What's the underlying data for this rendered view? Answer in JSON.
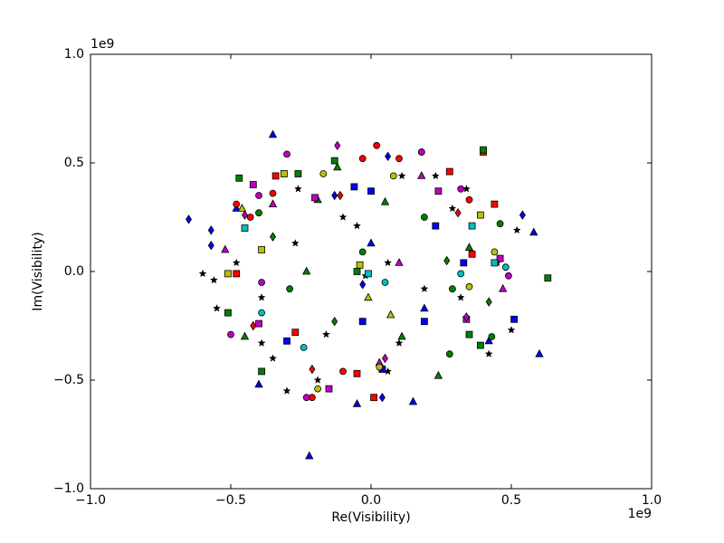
{
  "chart_data": {
    "type": "scatter",
    "xlabel": "Re(Visibility)",
    "ylabel": "Im(Visibility)",
    "x_offset_label": "1e9",
    "y_offset_label": "1e9",
    "xlim": [
      -1,
      1
    ],
    "ylim": [
      -1,
      1
    ],
    "xticks": [
      {
        "value": -1,
        "label": "−1.0"
      },
      {
        "value": -0.5,
        "label": "−0.5"
      },
      {
        "value": 0,
        "label": "0.0"
      },
      {
        "value": 0.5,
        "label": "0.5"
      },
      {
        "value": 1,
        "label": "1.0"
      }
    ],
    "yticks": [
      {
        "value": -1,
        "label": "−1.0"
      },
      {
        "value": -0.5,
        "label": "−0.5"
      },
      {
        "value": 0,
        "label": "0.0"
      },
      {
        "value": 0.5,
        "label": "0.5"
      },
      {
        "value": 1,
        "label": "1.0"
      }
    ],
    "series": [
      {
        "color": "#000000",
        "marker": "star",
        "x": [
          -0.6,
          -0.56,
          -0.55,
          -0.48,
          -0.39,
          -0.3,
          -0.27,
          -0.35,
          -0.19,
          -0.05,
          -0.02,
          0.06,
          0.1,
          0.19,
          0.23,
          0.29,
          0.42,
          0.5,
          0.52,
          0.45,
          -0.1,
          0.11,
          -0.26,
          0.06,
          -0.39,
          -0.16,
          0.32,
          0.34
        ],
        "y": [
          -0.01,
          -0.04,
          -0.17,
          0.04,
          -0.12,
          -0.55,
          0.13,
          -0.4,
          -0.5,
          0.21,
          -0.02,
          0.04,
          -0.33,
          -0.08,
          0.44,
          0.29,
          -0.38,
          -0.27,
          0.19,
          0.04,
          0.25,
          0.44,
          0.38,
          -0.46,
          -0.33,
          -0.29,
          -0.12,
          0.38
        ]
      },
      {
        "color": "#0000ff",
        "marker": "triangle",
        "x": [
          -0.22,
          -0.35,
          0.6,
          0.58,
          -0.4,
          -0.05,
          0.15,
          0.0,
          0.19,
          0.42,
          -0.48
        ],
        "y": [
          -0.85,
          0.63,
          -0.38,
          0.18,
          -0.52,
          -0.61,
          -0.6,
          0.13,
          -0.17,
          -0.32,
          0.29
        ]
      },
      {
        "color": "#0000ff",
        "marker": "diamond",
        "x": [
          -0.65,
          -0.57,
          -0.57,
          0.54,
          -0.13,
          0.04,
          -0.03,
          0.06
        ],
        "y": [
          0.24,
          0.19,
          0.12,
          0.26,
          0.35,
          -0.58,
          -0.06,
          0.53
        ]
      },
      {
        "color": "#0000ff",
        "marker": "square",
        "x": [
          0.51,
          0.19,
          0.0,
          -0.03,
          -0.3,
          0.23,
          0.33,
          0.04,
          -0.06
        ],
        "y": [
          -0.22,
          -0.23,
          0.37,
          -0.23,
          -0.32,
          0.21,
          0.04,
          -0.45,
          0.39
        ]
      },
      {
        "color": "#ff0000",
        "marker": "circle",
        "x": [
          0.02,
          0.1,
          0.18,
          -0.21,
          -0.1,
          -0.48,
          -0.35,
          -0.03,
          0.35,
          -0.43
        ],
        "y": [
          0.58,
          0.52,
          0.55,
          -0.58,
          -0.46,
          0.31,
          0.36,
          0.52,
          0.33,
          0.25
        ]
      },
      {
        "color": "#ff0000",
        "marker": "square",
        "x": [
          0.01,
          0.4,
          -0.34,
          -0.48,
          0.28,
          -0.27,
          -0.05,
          0.44,
          0.36
        ],
        "y": [
          -0.58,
          0.55,
          0.44,
          -0.01,
          0.46,
          -0.28,
          -0.47,
          0.31,
          0.08
        ]
      },
      {
        "color": "#ff0000",
        "marker": "diamond",
        "x": [
          -0.21,
          -0.11,
          -0.42,
          0.31
        ],
        "y": [
          -0.45,
          0.35,
          -0.25,
          0.27
        ]
      },
      {
        "color": "#008000",
        "marker": "square",
        "x": [
          0.4,
          0.63,
          -0.39,
          -0.47,
          -0.26,
          -0.13,
          0.39,
          -0.05,
          0.35,
          -0.51
        ],
        "y": [
          0.56,
          -0.03,
          -0.46,
          0.43,
          0.45,
          0.51,
          -0.34,
          0.0,
          -0.29,
          -0.19
        ]
      },
      {
        "color": "#008000",
        "marker": "circle",
        "x": [
          0.46,
          0.43,
          0.28,
          -0.4,
          -0.03,
          0.19,
          -0.29,
          0.29
        ],
        "y": [
          0.22,
          -0.3,
          -0.38,
          0.27,
          0.09,
          0.25,
          -0.08,
          -0.08
        ]
      },
      {
        "color": "#008000",
        "marker": "triangle",
        "x": [
          -0.12,
          0.24,
          -0.45,
          -0.23,
          0.11,
          0.05,
          -0.19,
          0.35
        ],
        "y": [
          0.48,
          -0.48,
          -0.3,
          0.0,
          -0.3,
          0.32,
          0.33,
          0.11
        ]
      },
      {
        "color": "#008000",
        "marker": "diamond",
        "x": [
          -0.13,
          0.27,
          -0.35,
          0.42
        ],
        "y": [
          -0.23,
          0.05,
          0.16,
          -0.14
        ]
      },
      {
        "color": "#bf00bf",
        "marker": "circle",
        "x": [
          -0.23,
          0.18,
          -0.5,
          -0.4,
          -0.3,
          0.49,
          0.32,
          -0.39
        ],
        "y": [
          -0.58,
          0.55,
          -0.29,
          0.35,
          0.54,
          -0.02,
          0.38,
          -0.05
        ]
      },
      {
        "color": "#bf00bf",
        "marker": "square",
        "x": [
          -0.42,
          0.24,
          -0.2,
          -0.4,
          0.34,
          -0.15,
          0.46
        ],
        "y": [
          0.4,
          0.37,
          0.34,
          -0.24,
          -0.22,
          -0.54,
          0.06
        ]
      },
      {
        "color": "#bf00bf",
        "marker": "triangle",
        "x": [
          -0.52,
          0.18,
          -0.35,
          0.1,
          0.03,
          0.47
        ],
        "y": [
          0.1,
          0.44,
          0.31,
          0.04,
          -0.42,
          -0.08
        ]
      },
      {
        "color": "#bf00bf",
        "marker": "diamond",
        "x": [
          -0.12,
          -0.45,
          0.34,
          0.05
        ],
        "y": [
          0.58,
          0.26,
          -0.21,
          -0.4
        ]
      },
      {
        "color": "#00bfbf",
        "marker": "circle",
        "x": [
          0.48,
          -0.24,
          0.32,
          0.05,
          -0.39
        ],
        "y": [
          0.02,
          -0.35,
          -0.01,
          -0.05,
          -0.19
        ]
      },
      {
        "color": "#00bfbf",
        "marker": "square",
        "x": [
          -0.45,
          -0.01,
          0.36,
          0.44
        ],
        "y": [
          0.2,
          -0.01,
          0.21,
          0.04
        ]
      },
      {
        "color": "#bfbf00",
        "marker": "circle",
        "x": [
          -0.19,
          0.35,
          0.08,
          -0.17,
          0.44,
          0.03
        ],
        "y": [
          -0.54,
          -0.07,
          0.44,
          0.45,
          0.09,
          -0.44
        ]
      },
      {
        "color": "#bfbf00",
        "marker": "square",
        "x": [
          -0.51,
          0.39,
          -0.31,
          -0.04,
          -0.39
        ],
        "y": [
          -0.01,
          0.26,
          0.45,
          0.03,
          0.1
        ]
      },
      {
        "color": "#bfbf00",
        "marker": "triangle",
        "x": [
          -0.46,
          0.07,
          -0.01
        ],
        "y": [
          0.29,
          -0.2,
          -0.12
        ]
      }
    ]
  }
}
